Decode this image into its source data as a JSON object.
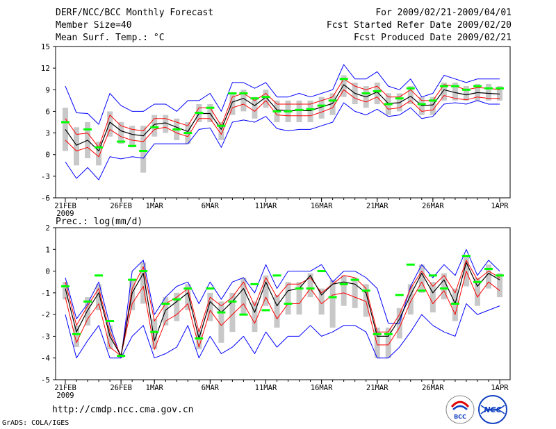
{
  "header": {
    "title": "DERF/NCC/BCC Monthly Forecast",
    "member": "Member Size=40",
    "variable": "Mean Surf. Temp.: °C",
    "period": "For 2009/02/21-2009/04/01",
    "start": "Fcst Started Refer Date 2009/02/20",
    "produced": "Fcst Produced Date 2009/02/21"
  },
  "footer": {
    "url": "http://cmdp.ncc.cma.gov.cn",
    "grads": "GrADS: COLA/IGES"
  },
  "logos": {
    "bcc": "BCC",
    "ncc": "NCC"
  },
  "colors": {
    "envelope": "#0000ff",
    "spread": "#ff0000",
    "mean": "#000000",
    "obs": "#00ff00",
    "box": "#c8c8c8"
  },
  "chart_data": [
    {
      "type": "line",
      "title": "Mean Surf. Temp.: °C",
      "x_ticks": [
        "21FEB",
        "26FEB",
        "1MAR",
        "6MAR",
        "11MAR",
        "16MAR",
        "21MAR",
        "26MAR",
        "1APR"
      ],
      "x_tick_days": [
        0,
        5,
        8,
        13,
        18,
        23,
        28,
        33,
        39
      ],
      "x_year": "2009",
      "ylim": [
        -6,
        15
      ],
      "y_ticks": [
        "-6",
        "-3",
        "0",
        "3",
        "6",
        "9",
        "12",
        "15"
      ],
      "series": [
        {
          "name": "max",
          "values": [
            9.5,
            5.8,
            5.7,
            4.2,
            8.5,
            6.8,
            6.0,
            6.0,
            7.0,
            7.0,
            6.0,
            7.5,
            7.5,
            8.5,
            6.0,
            10.0,
            10.0,
            9.2,
            10.0,
            8.0,
            8.0,
            8.5,
            8.0,
            8.5,
            9.0,
            12.5,
            10.5,
            10.5,
            11.5,
            9.5,
            9.0,
            10.5,
            8.0,
            8.5,
            11.0,
            10.5,
            10.0,
            10.5,
            10.5,
            10.5
          ]
        },
        {
          "name": "upper",
          "values": [
            5.0,
            2.8,
            3.0,
            1.0,
            5.5,
            4.0,
            3.5,
            3.3,
            5.0,
            5.0,
            4.5,
            4.0,
            6.5,
            6.5,
            4.0,
            8.0,
            8.5,
            7.5,
            8.5,
            7.0,
            7.0,
            7.0,
            7.0,
            7.5,
            8.0,
            10.5,
            9.5,
            9.0,
            9.5,
            8.0,
            8.0,
            9.0,
            7.5,
            7.5,
            9.7,
            9.5,
            9.0,
            9.3,
            9.2,
            9.0
          ]
        },
        {
          "name": "mean",
          "values": [
            3.5,
            1.3,
            2.0,
            0.5,
            4.5,
            3.3,
            2.8,
            2.6,
            4.2,
            4.4,
            3.8,
            3.2,
            5.7,
            5.7,
            3.5,
            7.3,
            7.8,
            6.8,
            8.0,
            6.2,
            6.1,
            6.1,
            6.1,
            6.6,
            7.1,
            9.7,
            8.5,
            8.0,
            8.7,
            7.1,
            7.2,
            8.1,
            6.8,
            6.9,
            9.0,
            8.6,
            8.3,
            8.6,
            8.5,
            8.4
          ]
        },
        {
          "name": "lower",
          "values": [
            2.0,
            0.5,
            1.0,
            -0.3,
            3.5,
            2.5,
            2.0,
            1.8,
            3.5,
            3.8,
            3.0,
            2.5,
            5.0,
            5.0,
            2.8,
            6.5,
            7.0,
            6.0,
            7.5,
            5.5,
            5.4,
            5.4,
            5.4,
            5.9,
            6.5,
            9.0,
            7.8,
            7.3,
            8.0,
            6.3,
            6.5,
            7.5,
            6.0,
            6.2,
            8.2,
            7.8,
            7.6,
            8.0,
            7.8,
            7.8
          ]
        },
        {
          "name": "min",
          "values": [
            -1.0,
            -3.3,
            -1.8,
            -3.5,
            -0.3,
            -0.6,
            -0.3,
            -0.5,
            1.5,
            1.5,
            1.5,
            1.5,
            3.5,
            3.7,
            1.0,
            4.5,
            4.8,
            4.5,
            5.3,
            3.6,
            3.3,
            3.5,
            3.5,
            4.0,
            4.5,
            7.2,
            6.0,
            5.5,
            6.3,
            5.3,
            5.5,
            6.5,
            5.0,
            5.3,
            7.0,
            7.2,
            7.0,
            7.5,
            7.0,
            7.0
          ]
        },
        {
          "name": "box_top",
          "values": [
            6.5,
            3.8,
            4.5,
            1.8,
            6.0,
            4.5,
            4.0,
            4.0,
            5.5,
            5.5,
            5.0,
            4.5,
            7.0,
            7.0,
            4.5,
            8.5,
            9.0,
            8.0,
            9.0,
            7.5,
            7.5,
            7.5,
            7.5,
            8.0,
            8.5,
            11.0,
            10.0,
            9.5,
            10.0,
            8.5,
            8.5,
            9.5,
            8.0,
            8.0,
            10.0,
            10.0,
            9.5,
            9.8,
            9.8,
            9.5
          ]
        },
        {
          "name": "box_bottom",
          "values": [
            0.5,
            -1.5,
            -0.5,
            -1.5,
            2.5,
            1.5,
            1.0,
            -2.5,
            2.5,
            3.0,
            2.0,
            1.5,
            4.5,
            4.5,
            2.0,
            5.5,
            6.0,
            5.0,
            6.5,
            4.5,
            4.5,
            4.5,
            4.5,
            5.0,
            5.5,
            8.0,
            7.0,
            6.5,
            7.0,
            5.5,
            6.0,
            7.0,
            5.5,
            5.5,
            7.5,
            7.5,
            7.5,
            7.5,
            7.5,
            7.5
          ]
        },
        {
          "name": "observed",
          "values": [
            4.5,
            null,
            3.5,
            1.0,
            null,
            1.8,
            1.2,
            0.5,
            3.8,
            null,
            3.5,
            3.0,
            5.8,
            6.5,
            4.0,
            8.5,
            8.5,
            7.8,
            8.0,
            6.0,
            6.0,
            6.2,
            6.3,
            6.8,
            7.5,
            10.5,
            null,
            8.5,
            8.8,
            7.0,
            7.8,
            9.2,
            7.0,
            7.5,
            9.5,
            9.5,
            9.0,
            9.5,
            9.2,
            9.2
          ]
        }
      ]
    },
    {
      "type": "line",
      "title": "Prec.: log(mm/d)",
      "x_ticks": [
        "21FEB",
        "26FEB",
        "1MAR",
        "6MAR",
        "11MAR",
        "16MAR",
        "21MAR",
        "26MAR",
        "1APR"
      ],
      "x_tick_days": [
        0,
        5,
        8,
        13,
        18,
        23,
        28,
        33,
        39
      ],
      "x_year": "2009",
      "ylim": [
        -5,
        2
      ],
      "y_ticks": [
        "-5",
        "-4",
        "-3",
        "-2",
        "-1",
        "0",
        "1",
        "2"
      ],
      "series": [
        {
          "name": "max",
          "values": [
            -0.3,
            -2.2,
            -1.5,
            -0.5,
            -2.5,
            -4.0,
            0.0,
            0.5,
            -2.0,
            -1.2,
            -0.7,
            -0.5,
            -1.5,
            -0.5,
            -1.3,
            -0.5,
            -0.3,
            -1.0,
            0.3,
            -0.8,
            0.0,
            0.0,
            0.0,
            0.3,
            -0.5,
            0.0,
            0.0,
            -0.3,
            -0.8,
            -2.4,
            -2.4,
            -0.7,
            0.3,
            -0.3,
            0.3,
            -0.2,
            1.0,
            -0.2,
            0.5,
            0.0
          ]
        },
        {
          "name": "upper",
          "values": [
            -0.5,
            -2.5,
            -1.6,
            -0.8,
            -2.8,
            -3.9,
            -0.8,
            0.2,
            -2.3,
            -1.5,
            -1.2,
            -0.8,
            -2.8,
            -1.2,
            -1.6,
            -1.2,
            -0.5,
            -1.6,
            -0.3,
            -1.2,
            -0.6,
            -0.6,
            -0.3,
            -1.0,
            -0.6,
            -0.2,
            -0.3,
            -0.8,
            -2.8,
            -2.8,
            -2.0,
            -0.8,
            0.0,
            -0.7,
            -0.2,
            -1.0,
            0.5,
            -0.4,
            0.0,
            -0.3
          ]
        },
        {
          "name": "mean",
          "values": [
            -0.8,
            -2.8,
            -1.8,
            -1.0,
            -3.0,
            -3.9,
            -1.0,
            -0.1,
            -3.2,
            -1.8,
            -1.4,
            -1.0,
            -3.1,
            -1.4,
            -1.9,
            -1.4,
            -0.8,
            -1.9,
            -0.5,
            -1.6,
            -0.9,
            -0.8,
            -0.2,
            -1.1,
            -0.6,
            -0.5,
            -0.6,
            -1.0,
            -3.0,
            -3.0,
            -2.2,
            -1.1,
            -0.1,
            -1.0,
            -0.4,
            -1.5,
            0.4,
            -0.7,
            -0.1,
            -0.4
          ]
        },
        {
          "name": "lower",
          "values": [
            -1.2,
            -3.3,
            -2.2,
            -1.5,
            -3.5,
            -3.9,
            -1.5,
            -0.7,
            -3.6,
            -2.3,
            -2.0,
            -1.5,
            -3.5,
            -1.8,
            -2.5,
            -2.0,
            -1.5,
            -2.4,
            -1.2,
            -2.2,
            -1.5,
            -1.5,
            -0.8,
            -1.5,
            -1.1,
            -1.0,
            -1.2,
            -1.4,
            -3.4,
            -3.4,
            -2.6,
            -1.4,
            -0.5,
            -1.5,
            -0.9,
            -2.0,
            0.0,
            -1.2,
            -0.5,
            -0.9
          ]
        },
        {
          "name": "min",
          "values": [
            -2.0,
            -4.0,
            -3.2,
            -2.5,
            -4.0,
            -4.0,
            -3.0,
            -2.5,
            -4.0,
            -3.8,
            -3.5,
            -2.5,
            -4.0,
            -3.0,
            -3.8,
            -3.5,
            -3.0,
            -3.8,
            -2.8,
            -3.5,
            -3.0,
            -3.0,
            -2.5,
            -3.0,
            -2.8,
            -2.5,
            -2.5,
            -2.8,
            -4.0,
            -4.0,
            -3.5,
            -2.8,
            -2.0,
            -2.5,
            -2.8,
            -3.0,
            -1.5,
            -2.0,
            -1.8,
            -1.6
          ]
        },
        {
          "name": "box_top",
          "values": [
            -0.5,
            -2.5,
            -1.2,
            -0.6,
            -2.5,
            -3.8,
            -0.4,
            0.4,
            -2.2,
            -1.2,
            -1.0,
            -0.6,
            -2.7,
            -1.0,
            -1.4,
            -1.0,
            -0.3,
            -1.4,
            -0.2,
            -1.1,
            -0.5,
            -0.5,
            -0.1,
            -0.8,
            -0.4,
            -0.2,
            -0.3,
            -0.6,
            -2.6,
            -2.6,
            -1.7,
            -0.6,
            0.3,
            -0.5,
            -0.1,
            -0.8,
            0.7,
            -0.3,
            0.3,
            -0.1
          ]
        },
        {
          "name": "box_bottom",
          "values": [
            -1.3,
            -3.5,
            -2.5,
            -1.8,
            -3.6,
            -4.0,
            -1.8,
            -1.5,
            -3.6,
            -2.5,
            -2.3,
            -1.8,
            -3.6,
            -2.3,
            -3.3,
            -2.8,
            -2.0,
            -2.8,
            -1.6,
            -2.6,
            -2.0,
            -2.0,
            -1.2,
            -2.0,
            -2.6,
            -1.6,
            -1.7,
            -2.1,
            -4.0,
            -4.0,
            -3.1,
            -2.0,
            -1.0,
            -1.9,
            -1.3,
            -2.3,
            -0.7,
            -1.6,
            -0.8,
            -1.2
          ]
        },
        {
          "name": "observed",
          "values": [
            -0.7,
            -2.9,
            -1.4,
            -0.2,
            -2.3,
            -3.9,
            -0.4,
            0.0,
            -2.8,
            -1.5,
            -1.3,
            -0.8,
            -3.1,
            -0.8,
            -1.9,
            -1.4,
            -2.0,
            -0.6,
            -1.8,
            -0.2,
            -1.5,
            -0.8,
            -0.8,
            0.0,
            -1.2,
            -0.6,
            -0.4,
            -0.9,
            -2.9,
            -2.9,
            -1.1,
            0.3,
            -0.9,
            -0.2,
            -0.8,
            -1.5,
            0.7,
            -0.5,
            0.1,
            -0.2
          ]
        }
      ]
    }
  ]
}
